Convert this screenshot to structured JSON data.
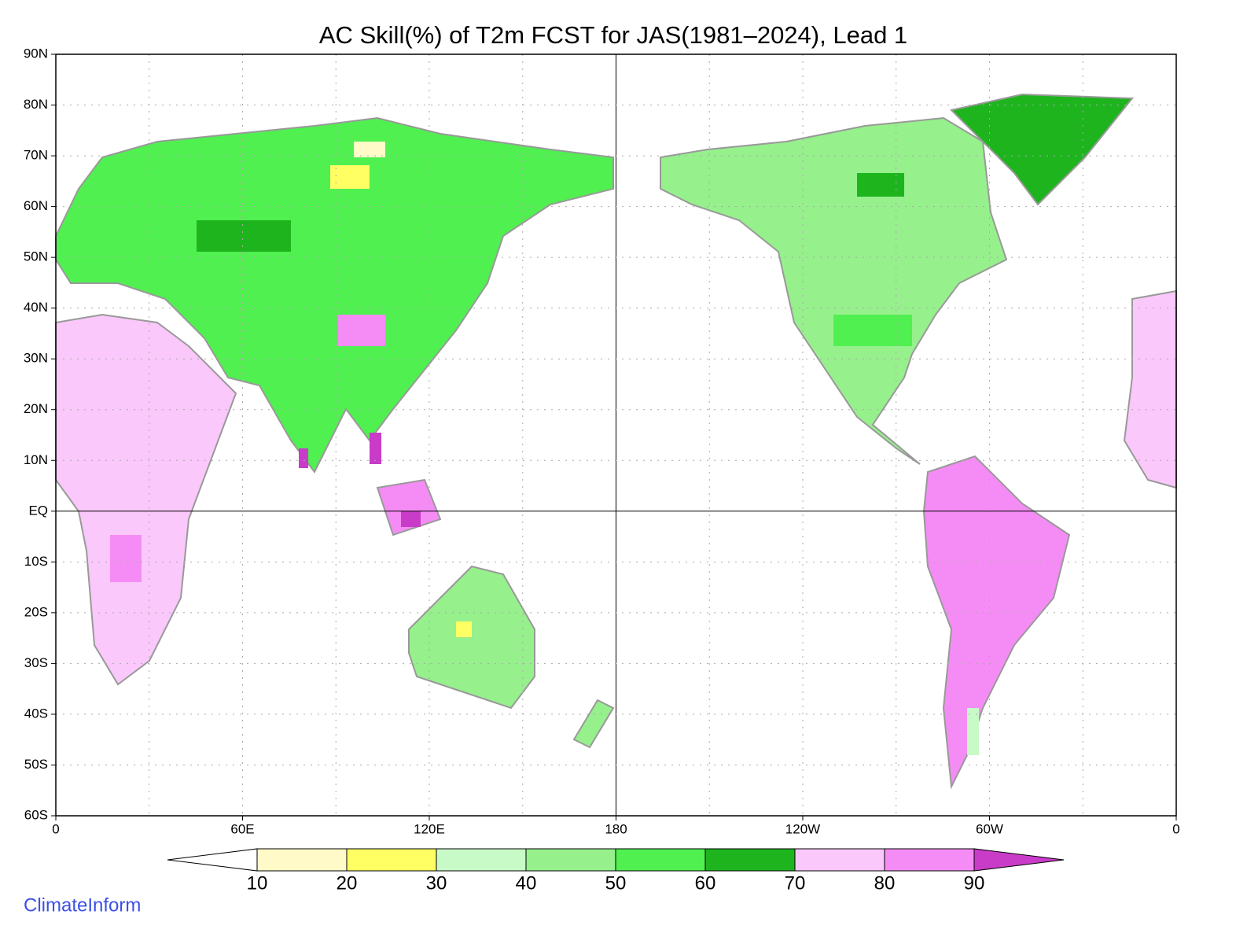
{
  "title": "AC Skill(%) of T2m FCST for JAS(1981–2024), Lead 1",
  "lat_labels": [
    "90N",
    "80N",
    "70N",
    "60N",
    "50N",
    "40N",
    "30N",
    "20N",
    "10N",
    "EQ",
    "10S",
    "20S",
    "30S",
    "40S",
    "50S",
    "60S"
  ],
  "lon_labels": [
    "0",
    "60E",
    "120E",
    "180",
    "120W",
    "60W",
    "0"
  ],
  "colorbar": {
    "levels": [
      10,
      20,
      30,
      40,
      50,
      60,
      70,
      80,
      90
    ],
    "colors": [
      "#ffffff",
      "#fffac8",
      "#ffff64",
      "#c8fac8",
      "#96f08c",
      "#50f050",
      "#1eb41e",
      "#fac8fa",
      "#f58cf5",
      "#c83cc8"
    ]
  },
  "credit": "ClimateInform"
}
